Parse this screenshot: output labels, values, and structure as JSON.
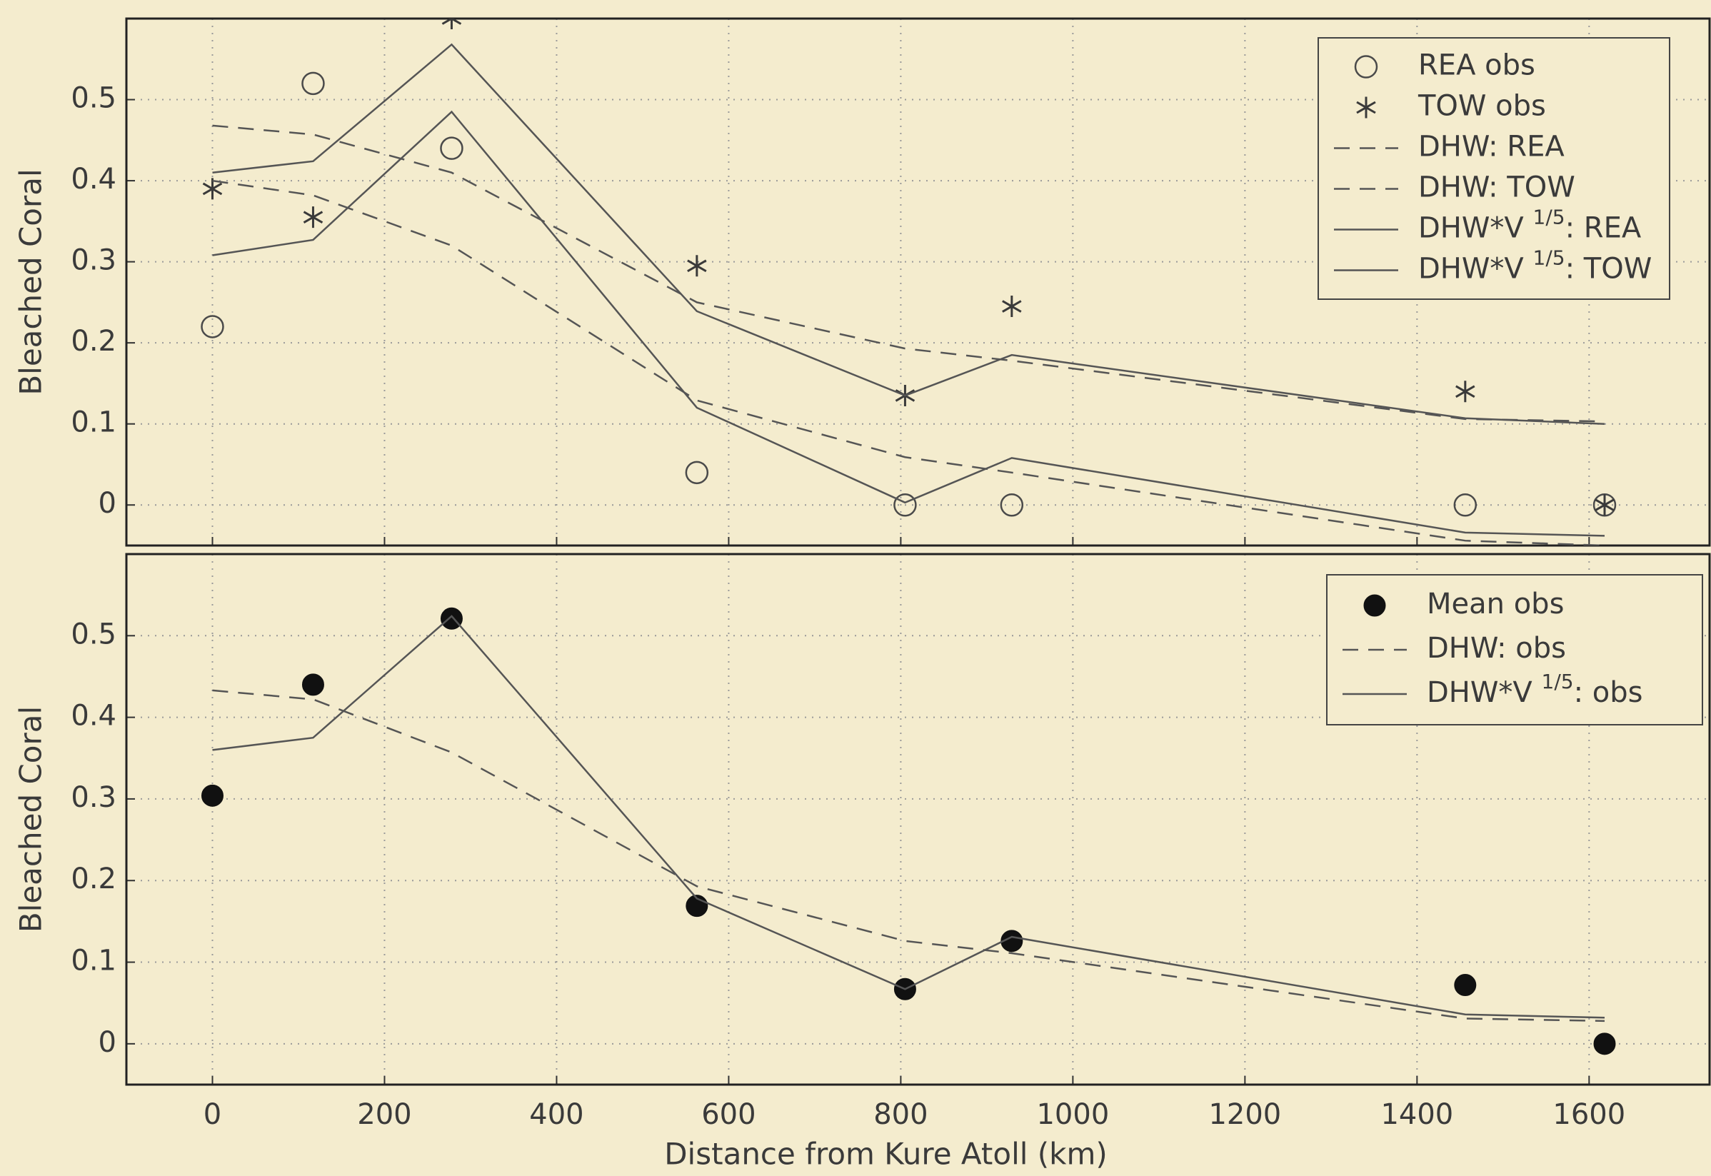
{
  "chart_data": [
    {
      "type": "line",
      "ylabel": "Bleached Coral",
      "x": [
        0,
        117,
        278,
        563,
        805,
        929,
        1456,
        1618
      ],
      "xlim": [
        -100,
        1740
      ],
      "ylim": [
        -0.05,
        0.6
      ],
      "xticks": [
        0,
        200,
        400,
        600,
        800,
        1000,
        1200,
        1400,
        1600
      ],
      "yticks": [
        0,
        0.1,
        0.2,
        0.3,
        0.4,
        0.5
      ],
      "show_xticklabels": false,
      "grid": true,
      "legend": "upper right",
      "series": [
        {
          "name": "REA obs",
          "color": "#4a4a4a",
          "linestyle": "none",
          "marker": "circle",
          "values": [
            0.22,
            0.52,
            0.44,
            0.04,
            0,
            0,
            0,
            0
          ]
        },
        {
          "name": "TOW obs",
          "color": "#3a3a3a",
          "linestyle": "none",
          "marker": "star",
          "values": [
            0.39,
            0.355,
            0.6,
            0.295,
            0.135,
            0.245,
            0.14,
            0
          ]
        },
        {
          "name": "DHW: REA",
          "color": "#555555",
          "linestyle": "dashed",
          "marker": "none",
          "values": [
            0.468,
            0.457,
            0.41,
            0.25,
            0.193,
            0.178,
            0.106,
            0.103
          ]
        },
        {
          "name": "DHW: TOW",
          "color": "#555555",
          "linestyle": "dashed",
          "marker": "none",
          "values": [
            0.4,
            0.382,
            0.32,
            0.129,
            0.059,
            0.04,
            -0.044,
            -0.05
          ]
        },
        {
          "name": "DHW*V 1/5: REA",
          "color": "#555555",
          "linestyle": "solid",
          "marker": "none",
          "values": [
            0.41,
            0.424,
            0.568,
            0.239,
            0.135,
            0.185,
            0.107,
            0.1
          ]
        },
        {
          "name": "DHW*V 1/5: TOW",
          "color": "#555555",
          "linestyle": "solid",
          "marker": "none",
          "values": [
            0.308,
            0.327,
            0.485,
            0.12,
            0.003,
            0.058,
            -0.034,
            -0.038
          ]
        }
      ]
    },
    {
      "type": "line",
      "ylabel": "Bleached Coral",
      "xlabel": "Distance from Kure Atoll (km)",
      "x": [
        0,
        117,
        278,
        563,
        805,
        929,
        1456,
        1618
      ],
      "xlim": [
        -100,
        1740
      ],
      "ylim": [
        -0.05,
        0.6
      ],
      "xticks": [
        0,
        200,
        400,
        600,
        800,
        1000,
        1200,
        1400,
        1600
      ],
      "yticks": [
        0,
        0.1,
        0.2,
        0.3,
        0.4,
        0.5
      ],
      "show_xticklabels": true,
      "grid": true,
      "legend": "upper right",
      "series": [
        {
          "name": "Mean obs",
          "color": "#111111",
          "linestyle": "none",
          "marker": "filled-circle",
          "values": [
            0.304,
            0.44,
            0.521,
            0.169,
            0.067,
            0.126,
            0.072,
            0
          ]
        },
        {
          "name": "DHW: obs",
          "color": "#555555",
          "linestyle": "dashed",
          "marker": "none",
          "values": [
            0.433,
            0.422,
            0.357,
            0.193,
            0.126,
            0.111,
            0.031,
            0.028
          ]
        },
        {
          "name": "DHW*V 1/5: obs",
          "color": "#555555",
          "linestyle": "solid",
          "marker": "none",
          "values": [
            0.36,
            0.375,
            0.524,
            0.178,
            0.067,
            0.131,
            0.036,
            0.032
          ]
        }
      ]
    }
  ]
}
